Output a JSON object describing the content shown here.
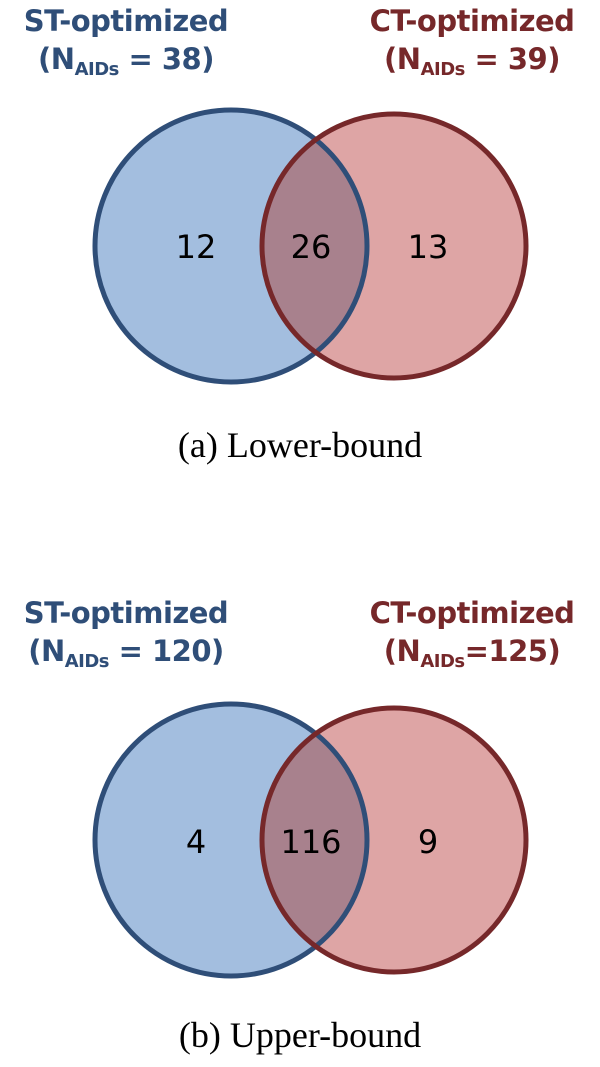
{
  "colors": {
    "st_fill": "#a3bedf",
    "st_stroke": "#2f4e78",
    "ct_fill": "#dea5a5",
    "ct_stroke": "#76282a",
    "overlap_fill": "#a8818d"
  },
  "panels": [
    {
      "caption": "(a) Lower-bound",
      "left_set": {
        "name": "ST-optimized",
        "n_open": "(N",
        "n_sub": "AIDs",
        "n_close": " = 38)",
        "only_count": "12"
      },
      "right_set": {
        "name": "CT-optimized",
        "n_open": "(N",
        "n_sub": "AIDs",
        "n_close": " = 39)",
        "only_count": "13"
      },
      "intersection_count": "26"
    },
    {
      "caption": "(b) Upper-bound",
      "left_set": {
        "name": "ST-optimized",
        "n_open": "(N",
        "n_sub": "AIDs",
        "n_close": " = 120)",
        "only_count": "4"
      },
      "right_set": {
        "name": "CT-optimized",
        "n_open": "(N",
        "n_sub": "AIDs",
        "n_close": "=125)",
        "only_count": "9"
      },
      "intersection_count": "116"
    }
  ]
}
